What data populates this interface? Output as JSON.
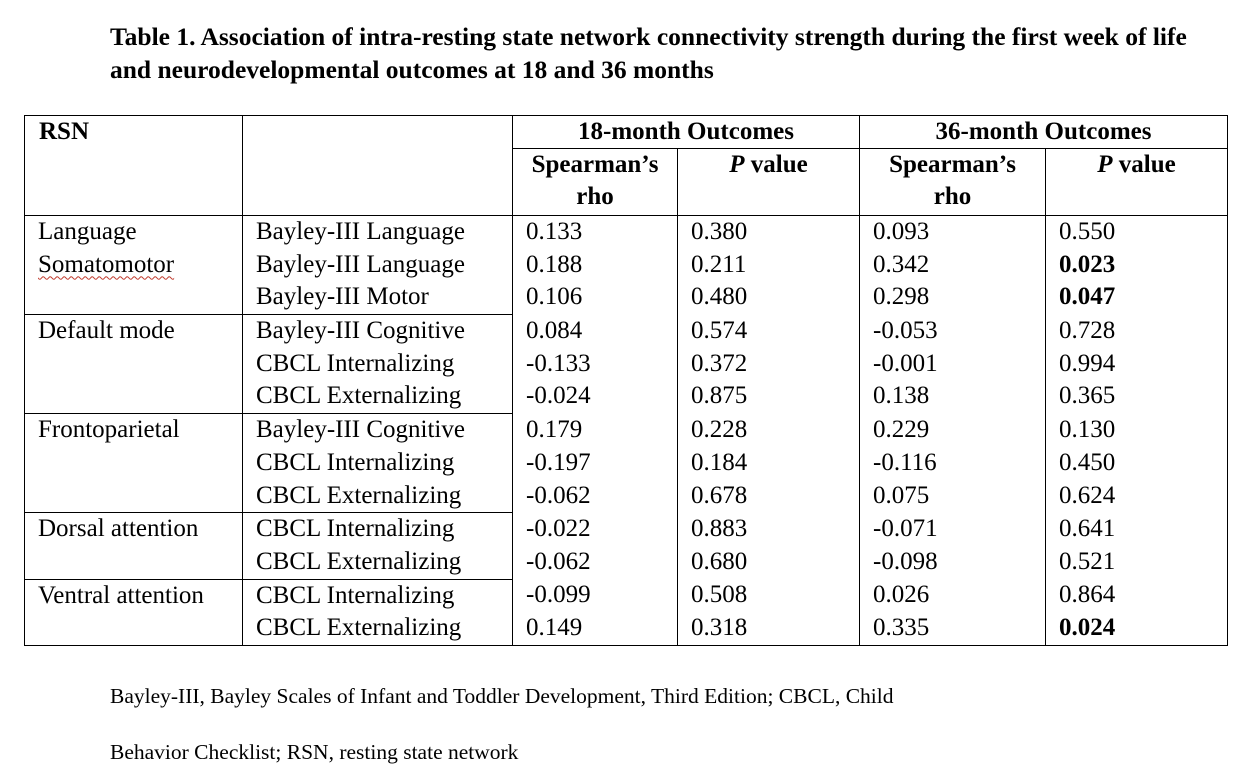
{
  "title": "Table 1. Association of intra-resting state network connectivity strength during the first week of life and neurodevelopmental outcomes at 18 and 36 months",
  "table": {
    "rsn_header": "RSN",
    "group_18": "18-month Outcomes",
    "group_36": "36-month Outcomes",
    "rho_label_line1": "Spearman’s",
    "rho_label_line2": "rho",
    "p_label_italic": "P",
    "p_label_rest": " value",
    "rows": [
      {
        "rsn": "Language",
        "outcome": "Bayley-III Language",
        "rho18": "0.133",
        "p18": "0.380",
        "rho36": "0.093",
        "p36": "0.550"
      },
      {
        "rsn": "Somatomotor",
        "outcome": "Bayley-III Language",
        "rho18": "0.188",
        "p18": "0.211",
        "rho36": "0.342",
        "p36": "0.023"
      },
      {
        "rsn": "",
        "outcome": "Bayley-III Motor",
        "rho18": "0.106",
        "p18": "0.480",
        "rho36": "0.298",
        "p36": "0.047"
      },
      {
        "rsn": "Default mode",
        "outcome": "Bayley-III Cognitive",
        "rho18": "0.084",
        "p18": "0.574",
        "rho36": "-0.053",
        "p36": "0.728"
      },
      {
        "rsn": "",
        "outcome": "CBCL Internalizing",
        "rho18": "-0.133",
        "p18": "0.372",
        "rho36": "-0.001",
        "p36": "0.994"
      },
      {
        "rsn": "",
        "outcome": "CBCL Externalizing",
        "rho18": "-0.024",
        "p18": "0.875",
        "rho36": "0.138",
        "p36": "0.365"
      },
      {
        "rsn": "Frontoparietal",
        "outcome": "Bayley-III Cognitive",
        "rho18": "0.179",
        "p18": "0.228",
        "rho36": "0.229",
        "p36": "0.130"
      },
      {
        "rsn": "",
        "outcome": "CBCL Internalizing",
        "rho18": "-0.197",
        "p18": "0.184",
        "rho36": "-0.116",
        "p36": "0.450"
      },
      {
        "rsn": "",
        "outcome": "CBCL Externalizing",
        "rho18": "-0.062",
        "p18": "0.678",
        "rho36": "0.075",
        "p36": "0.624"
      },
      {
        "rsn": "Dorsal attention",
        "outcome": "CBCL Internalizing",
        "rho18": "-0.022",
        "p18": "0.883",
        "rho36": "-0.071",
        "p36": "0.641"
      },
      {
        "rsn": "",
        "outcome": "CBCL Externalizing",
        "rho18": "-0.062",
        "p18": "0.680",
        "rho36": "-0.098",
        "p36": "0.521"
      },
      {
        "rsn": "Ventral attention",
        "outcome": "CBCL Internalizing",
        "rho18": "-0.099",
        "p18": "0.508",
        "rho36": "0.026",
        "p36": "0.864"
      },
      {
        "rsn": "",
        "outcome": "CBCL Externalizing",
        "rho18": "0.149",
        "p18": "0.318",
        "rho36": "0.335",
        "p36": "0.024"
      }
    ]
  },
  "footnote": {
    "line1": "Bayley-III, Bayley Scales of Infant and Toddler Development, Third Edition; CBCL, Child",
    "line2": "Behavior Checklist; RSN, resting state network"
  }
}
